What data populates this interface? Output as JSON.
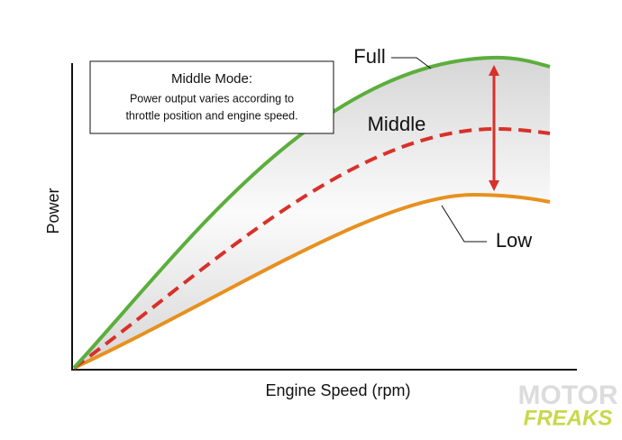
{
  "box": {
    "title": "Middle Mode:",
    "lines": [
      "Power output varies according to",
      "throttle position and engine speed."
    ]
  },
  "curves": {
    "full": "Full",
    "middle": "Middle",
    "low": "Low"
  },
  "axes": {
    "y_label": "Power",
    "x_label": "Engine Speed (rpm)"
  },
  "watermark": {
    "top": "MOTOR",
    "bottom": "FREAKS"
  }
}
